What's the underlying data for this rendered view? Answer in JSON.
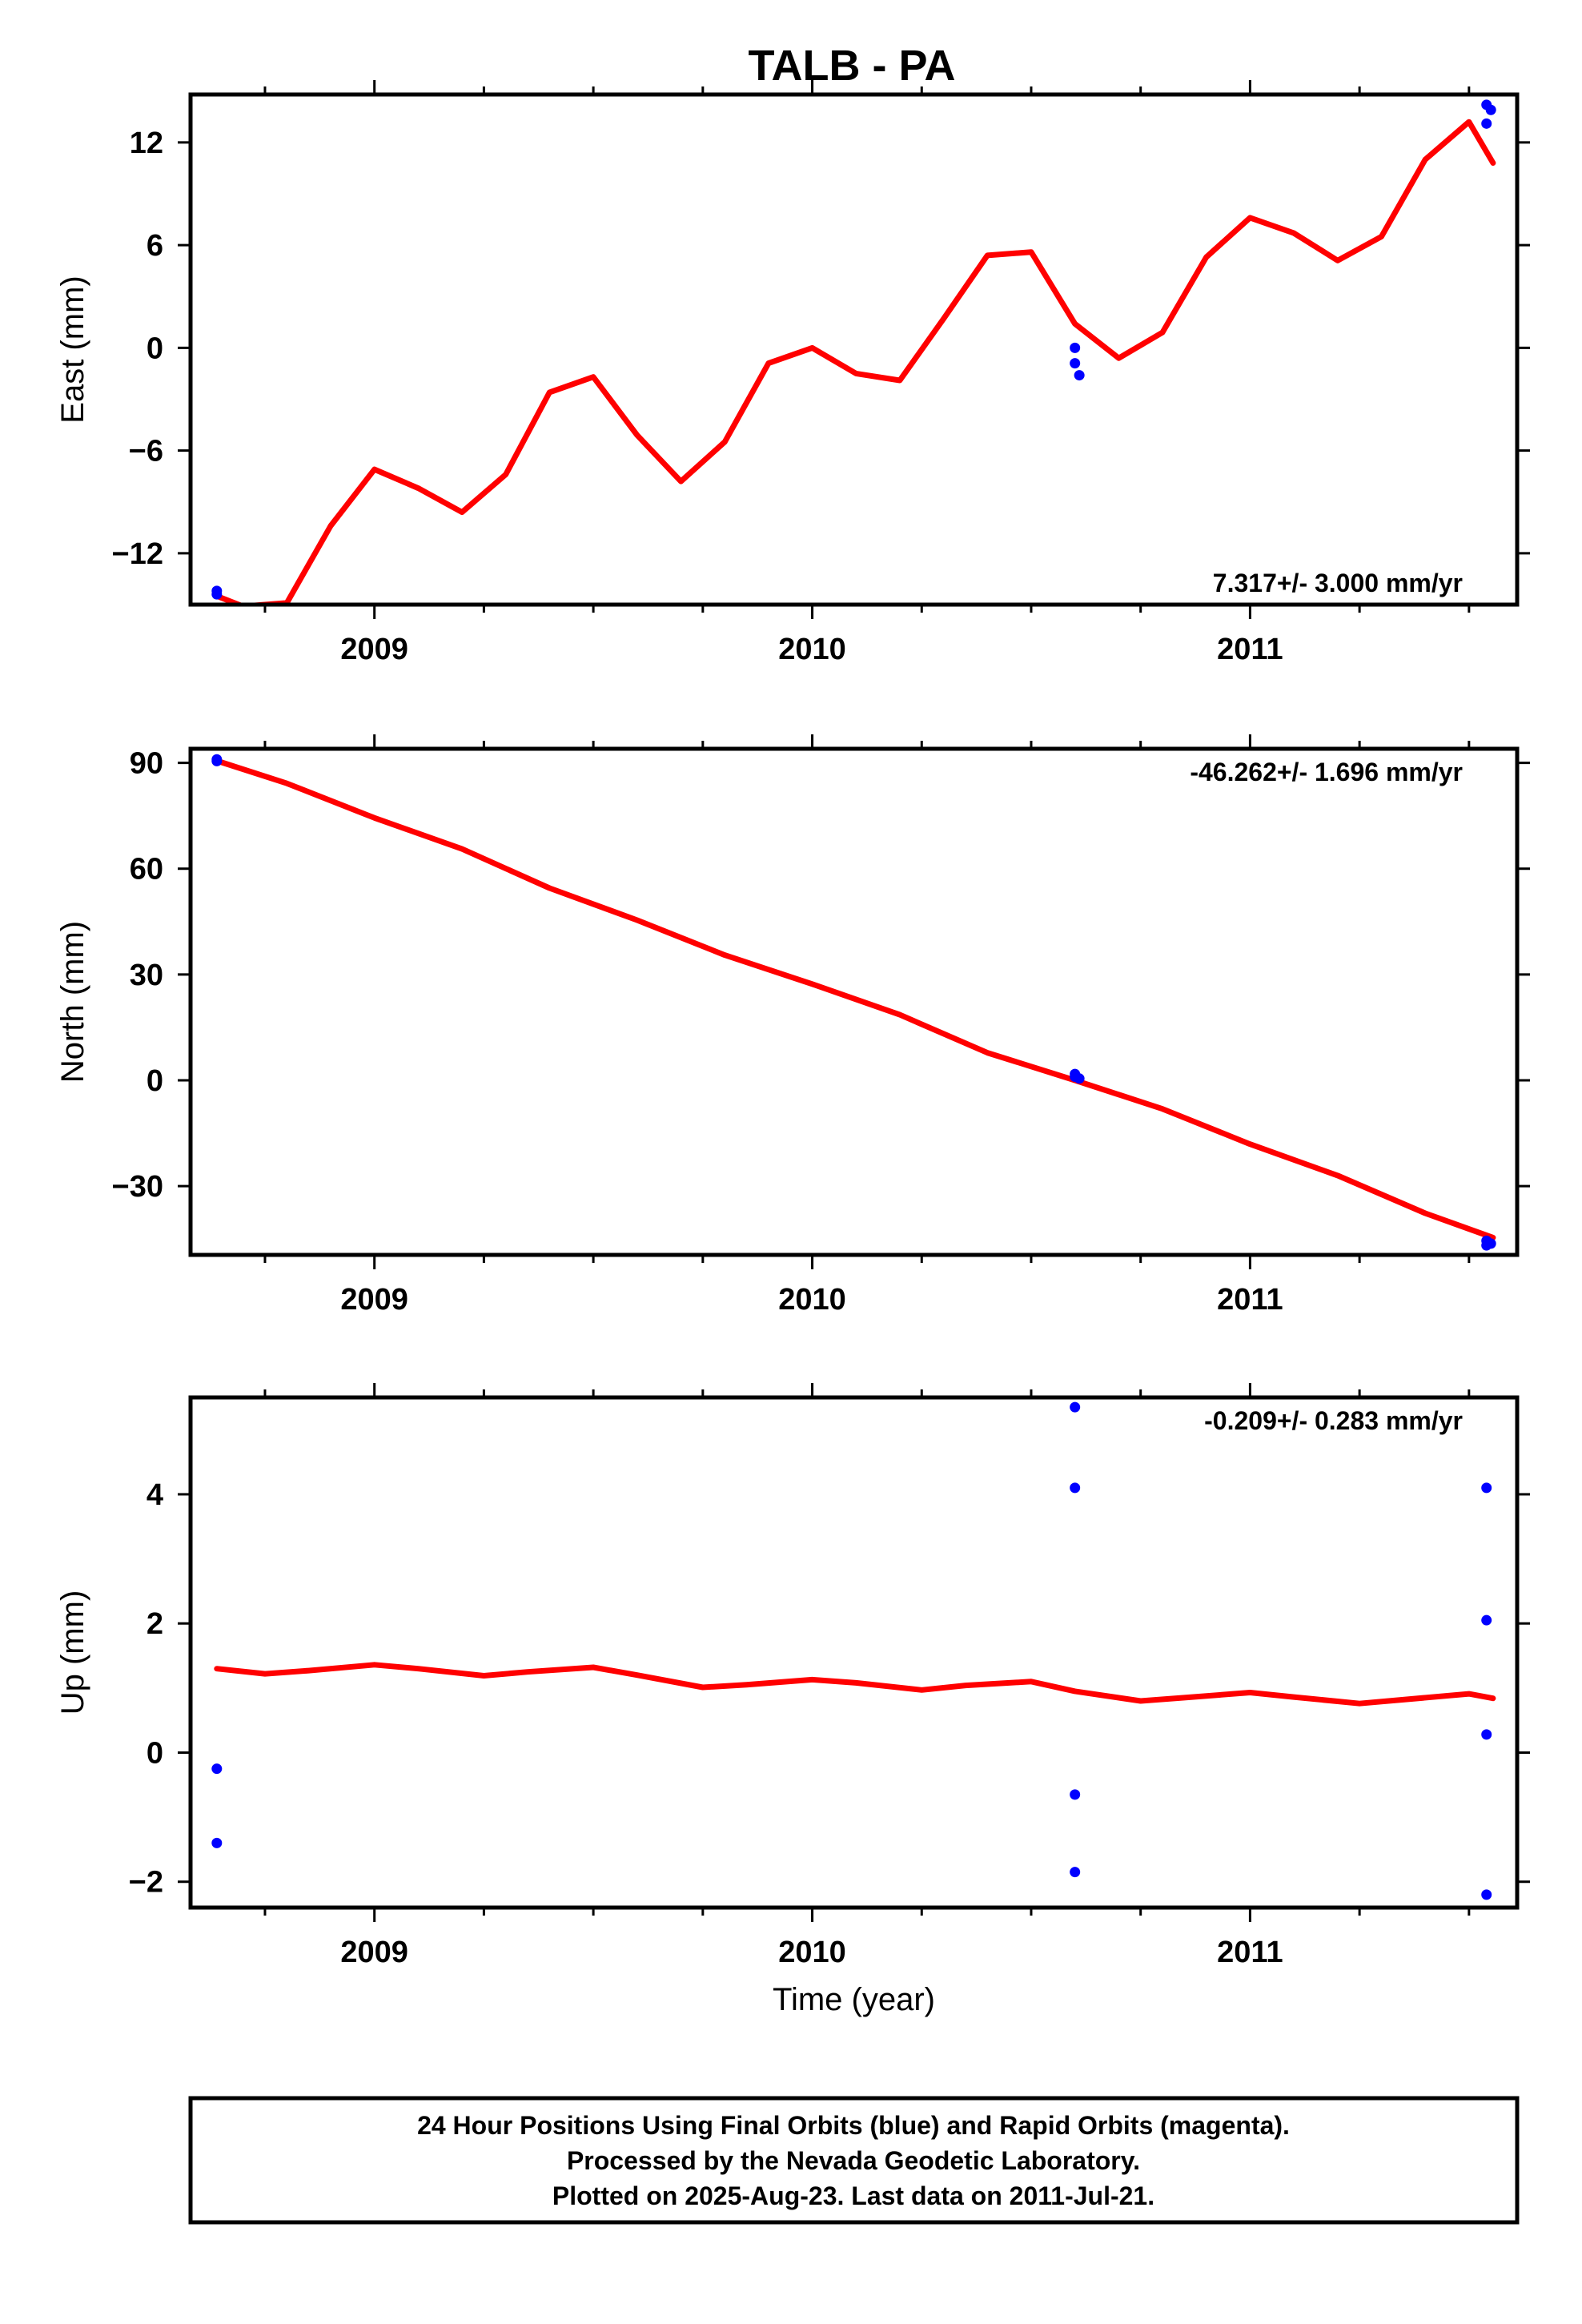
{
  "title": "TALB - PA",
  "footer": {
    "lines": [
      "24 Hour Positions Using Final Orbits (blue) and Rapid Orbits (magenta).",
      "Processed by the Nevada Geodetic Laboratory.",
      "Plotted on 2025-Aug-23. Last data on 2011-Jul-21."
    ]
  },
  "colors": {
    "model": "#ff0000",
    "final_orbits": "#0000ff",
    "axes": "#000000"
  },
  "chart_data": [
    {
      "type": "scatter",
      "ylabel": "East (mm)",
      "xlabel": "",
      "xlim": [
        2008.58,
        2011.61
      ],
      "ylim": [
        -15.0,
        14.8
      ],
      "xticks": [
        2009,
        2010,
        2011
      ],
      "xtick_labels": [
        "2009",
        "2010",
        "2011"
      ],
      "yticks": [
        -12,
        -6,
        0,
        6,
        12
      ],
      "ytick_labels": [
        "−12",
        "−6",
        "0",
        "6",
        "12"
      ],
      "rate_label": "7.317+/- 3.000 mm/yr",
      "rate_position": "bottom-right",
      "points": [
        [
          2008.64,
          -14.2
        ],
        [
          2008.64,
          -14.4
        ],
        [
          2010.6,
          0.0
        ],
        [
          2010.6,
          -0.9
        ],
        [
          2010.61,
          -1.6
        ],
        [
          2011.54,
          14.2
        ],
        [
          2011.55,
          13.9
        ],
        [
          2011.54,
          13.1
        ]
      ],
      "model": [
        [
          2008.64,
          -14.5
        ],
        [
          2008.7,
          -15.1
        ],
        [
          2008.8,
          -14.9
        ],
        [
          2008.9,
          -10.4
        ],
        [
          2009.0,
          -7.1
        ],
        [
          2009.1,
          -8.2
        ],
        [
          2009.2,
          -9.6
        ],
        [
          2009.3,
          -7.4
        ],
        [
          2009.4,
          -2.6
        ],
        [
          2009.5,
          -1.7
        ],
        [
          2009.6,
          -5.1
        ],
        [
          2009.7,
          -7.8
        ],
        [
          2009.8,
          -5.5
        ],
        [
          2009.9,
          -0.9
        ],
        [
          2010.0,
          0.0
        ],
        [
          2010.1,
          -1.5
        ],
        [
          2010.2,
          -1.9
        ],
        [
          2010.3,
          1.7
        ],
        [
          2010.4,
          5.4
        ],
        [
          2010.5,
          5.6
        ],
        [
          2010.6,
          1.4
        ],
        [
          2010.7,
          -0.6
        ],
        [
          2010.8,
          0.9
        ],
        [
          2010.9,
          5.3
        ],
        [
          2011.0,
          7.6
        ],
        [
          2011.1,
          6.7
        ],
        [
          2011.2,
          5.1
        ],
        [
          2011.3,
          6.5
        ],
        [
          2011.4,
          11.0
        ],
        [
          2011.5,
          13.2
        ],
        [
          2011.555,
          10.8
        ]
      ]
    },
    {
      "type": "scatter",
      "ylabel": "North (mm)",
      "xlabel": "",
      "xlim": [
        2008.58,
        2011.61
      ],
      "ylim": [
        -49.5,
        94.0
      ],
      "xticks": [
        2009,
        2010,
        2011
      ],
      "xtick_labels": [
        "2009",
        "2010",
        "2011"
      ],
      "yticks": [
        -30,
        0,
        30,
        60,
        90
      ],
      "ytick_labels": [
        "−30",
        "0",
        "30",
        "60",
        "90"
      ],
      "rate_label": "-46.262+/- 1.696 mm/yr",
      "rate_position": "top-right",
      "points": [
        [
          2008.64,
          91.0
        ],
        [
          2008.64,
          90.5
        ],
        [
          2010.6,
          1.8
        ],
        [
          2010.6,
          1.0
        ],
        [
          2010.61,
          0.5
        ],
        [
          2011.54,
          -45.5
        ],
        [
          2011.55,
          -46.3
        ],
        [
          2011.54,
          -46.8
        ]
      ],
      "model": [
        [
          2008.64,
          90.6
        ],
        [
          2008.8,
          84.2
        ],
        [
          2009.0,
          74.4
        ],
        [
          2009.2,
          65.6
        ],
        [
          2009.4,
          54.5
        ],
        [
          2009.6,
          45.4
        ],
        [
          2009.8,
          35.5
        ],
        [
          2010.0,
          27.3
        ],
        [
          2010.2,
          18.6
        ],
        [
          2010.4,
          7.8
        ],
        [
          2010.6,
          0.0
        ],
        [
          2010.8,
          -8.1
        ],
        [
          2011.0,
          -18.1
        ],
        [
          2011.2,
          -27.0
        ],
        [
          2011.4,
          -37.7
        ],
        [
          2011.555,
          -44.6
        ]
      ]
    },
    {
      "type": "scatter",
      "ylabel": "Up (mm)",
      "xlabel": "Time (year)",
      "xlim": [
        2008.58,
        2011.61
      ],
      "ylim": [
        -2.4,
        5.5
      ],
      "xticks": [
        2009,
        2010,
        2011
      ],
      "xtick_labels": [
        "2009",
        "2010",
        "2011"
      ],
      "yticks": [
        -2,
        0,
        2,
        4
      ],
      "ytick_labels": [
        "−2",
        "0",
        "2",
        "4"
      ],
      "rate_label": "-0.209+/- 0.283 mm/yr",
      "rate_position": "top-right",
      "points": [
        [
          2008.64,
          -0.25
        ],
        [
          2008.64,
          -1.4
        ],
        [
          2010.6,
          5.35
        ],
        [
          2010.6,
          4.1
        ],
        [
          2010.6,
          -0.65
        ],
        [
          2010.6,
          -1.85
        ],
        [
          2011.54,
          4.1
        ],
        [
          2011.54,
          2.05
        ],
        [
          2011.54,
          0.28
        ],
        [
          2011.54,
          -2.2
        ]
      ],
      "model": [
        [
          2008.64,
          1.3
        ],
        [
          2008.75,
          1.22
        ],
        [
          2008.85,
          1.27
        ],
        [
          2009.0,
          1.36
        ],
        [
          2009.1,
          1.3
        ],
        [
          2009.25,
          1.19
        ],
        [
          2009.35,
          1.25
        ],
        [
          2009.5,
          1.32
        ],
        [
          2009.6,
          1.2
        ],
        [
          2009.75,
          1.01
        ],
        [
          2009.85,
          1.05
        ],
        [
          2010.0,
          1.13
        ],
        [
          2010.1,
          1.08
        ],
        [
          2010.25,
          0.97
        ],
        [
          2010.35,
          1.04
        ],
        [
          2010.5,
          1.1
        ],
        [
          2010.6,
          0.95
        ],
        [
          2010.75,
          0.8
        ],
        [
          2010.85,
          0.85
        ],
        [
          2011.0,
          0.93
        ],
        [
          2011.1,
          0.86
        ],
        [
          2011.25,
          0.76
        ],
        [
          2011.35,
          0.82
        ],
        [
          2011.5,
          0.91
        ],
        [
          2011.555,
          0.84
        ]
      ]
    }
  ]
}
